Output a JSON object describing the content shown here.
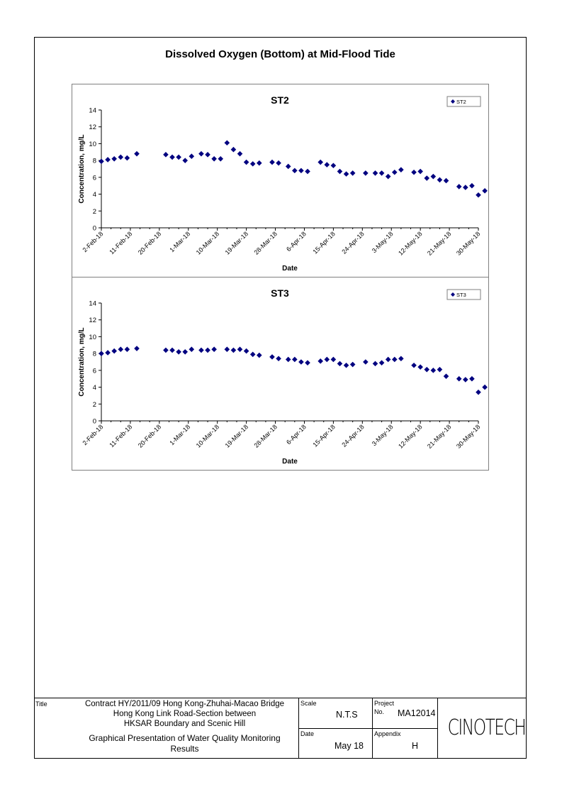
{
  "page_title": "Dissolved Oxygen (Bottom) at Mid-Flood Tide",
  "chart_data": [
    {
      "type": "scatter",
      "title": "ST2",
      "xlabel": "Date",
      "ylabel": "Concentration, mg/L",
      "ylim": [
        0,
        14
      ],
      "yticks": [
        0,
        2,
        4,
        6,
        8,
        10,
        12,
        14
      ],
      "xlim": [
        "2018-02-02",
        "2018-05-30"
      ],
      "xtick_labels": [
        "2-Feb-18",
        "11-Feb-18",
        "20-Feb-18",
        "1-Mar-18",
        "10-Mar-18",
        "19-Mar-18",
        "28-Mar-18",
        "6-Apr-18",
        "15-Apr-18",
        "24-Apr-18",
        "3-May-18",
        "12-May-18",
        "21-May-18",
        "30-May-18"
      ],
      "grid": false,
      "legend": "top-right",
      "series": [
        {
          "name": "ST2",
          "color": "#000080",
          "x": [
            "2018-02-02",
            "2018-02-04",
            "2018-02-06",
            "2018-02-08",
            "2018-02-10",
            "2018-02-13",
            "2018-02-22",
            "2018-02-24",
            "2018-02-26",
            "2018-02-28",
            "2018-03-02",
            "2018-03-05",
            "2018-03-07",
            "2018-03-09",
            "2018-03-11",
            "2018-03-13",
            "2018-03-15",
            "2018-03-17",
            "2018-03-19",
            "2018-03-21",
            "2018-03-23",
            "2018-03-27",
            "2018-03-29",
            "2018-04-01",
            "2018-04-03",
            "2018-04-05",
            "2018-04-07",
            "2018-04-11",
            "2018-04-13",
            "2018-04-15",
            "2018-04-17",
            "2018-04-19",
            "2018-04-21",
            "2018-04-25",
            "2018-04-28",
            "2018-04-30",
            "2018-05-02",
            "2018-05-04",
            "2018-05-06",
            "2018-05-10",
            "2018-05-12",
            "2018-05-14",
            "2018-05-16",
            "2018-05-18",
            "2018-05-20",
            "2018-05-24",
            "2018-05-26",
            "2018-05-28",
            "2018-05-30",
            "2018-06-01"
          ],
          "y": [
            7.9,
            8.1,
            8.2,
            8.4,
            8.3,
            8.8,
            8.7,
            8.4,
            8.4,
            8.0,
            8.5,
            8.8,
            8.7,
            8.2,
            8.2,
            10.1,
            9.3,
            8.8,
            7.8,
            7.6,
            7.7,
            7.8,
            7.7,
            7.3,
            6.8,
            6.8,
            6.7,
            7.8,
            7.5,
            7.4,
            6.7,
            6.4,
            6.5,
            6.5,
            6.5,
            6.5,
            6.1,
            6.6,
            6.9,
            6.6,
            6.7,
            5.9,
            6.1,
            5.7,
            5.6,
            4.9,
            4.8,
            5.0,
            3.9,
            4.4
          ]
        }
      ]
    },
    {
      "type": "scatter",
      "title": "ST3",
      "xlabel": "Date",
      "ylabel": "Concentration, mg/L",
      "ylim": [
        0,
        14
      ],
      "yticks": [
        0,
        2,
        4,
        6,
        8,
        10,
        12,
        14
      ],
      "xlim": [
        "2018-02-02",
        "2018-05-30"
      ],
      "xtick_labels": [
        "2-Feb-18",
        "11-Feb-18",
        "20-Feb-18",
        "1-Mar-18",
        "10-Mar-18",
        "19-Mar-18",
        "28-Mar-18",
        "6-Apr-18",
        "15-Apr-18",
        "24-Apr-18",
        "3-May-18",
        "12-May-18",
        "21-May-18",
        "30-May-18"
      ],
      "grid": false,
      "legend": "top-right",
      "series": [
        {
          "name": "ST3",
          "color": "#000080",
          "x": [
            "2018-02-02",
            "2018-02-04",
            "2018-02-06",
            "2018-02-08",
            "2018-02-10",
            "2018-02-13",
            "2018-02-22",
            "2018-02-24",
            "2018-02-26",
            "2018-02-28",
            "2018-03-02",
            "2018-03-05",
            "2018-03-07",
            "2018-03-09",
            "2018-03-13",
            "2018-03-15",
            "2018-03-17",
            "2018-03-19",
            "2018-03-21",
            "2018-03-23",
            "2018-03-27",
            "2018-03-29",
            "2018-04-01",
            "2018-04-03",
            "2018-04-05",
            "2018-04-07",
            "2018-04-11",
            "2018-04-13",
            "2018-04-15",
            "2018-04-17",
            "2018-04-19",
            "2018-04-21",
            "2018-04-25",
            "2018-04-28",
            "2018-04-30",
            "2018-05-02",
            "2018-05-04",
            "2018-05-06",
            "2018-05-10",
            "2018-05-12",
            "2018-05-14",
            "2018-05-16",
            "2018-05-18",
            "2018-05-20",
            "2018-05-24",
            "2018-05-26",
            "2018-05-28",
            "2018-05-30",
            "2018-06-01"
          ],
          "y": [
            8.0,
            8.1,
            8.3,
            8.5,
            8.5,
            8.6,
            8.4,
            8.4,
            8.2,
            8.2,
            8.5,
            8.4,
            8.4,
            8.5,
            8.5,
            8.4,
            8.5,
            8.3,
            7.9,
            7.8,
            7.6,
            7.4,
            7.3,
            7.3,
            7.0,
            6.9,
            7.1,
            7.3,
            7.3,
            6.8,
            6.6,
            6.7,
            7.0,
            6.8,
            6.9,
            7.3,
            7.3,
            7.4,
            6.6,
            6.4,
            6.1,
            6.0,
            6.1,
            5.3,
            5.0,
            4.9,
            5.0,
            3.4,
            4.0
          ]
        }
      ]
    }
  ],
  "title_block": {
    "title_label": "Title",
    "title_lines": [
      "Contract HY/2011/09 Hong Kong-Zhuhai-Macao Bridge",
      "Hong Kong Link Road-Section between",
      "HKSAR Boundary and Scenic Hill"
    ],
    "subtitle_lines": [
      "Graphical Presentation of Water Quality Monitoring",
      "Results"
    ],
    "scale_label": "Scale",
    "scale_value": "N.T.S",
    "project_label": "Project",
    "no_label": "No.",
    "project_value": "MA12014",
    "date_label": "Date",
    "date_value": "May 18",
    "appendix_label": "Appendix",
    "appendix_value": "H",
    "logo_text": "CINOTECH"
  }
}
